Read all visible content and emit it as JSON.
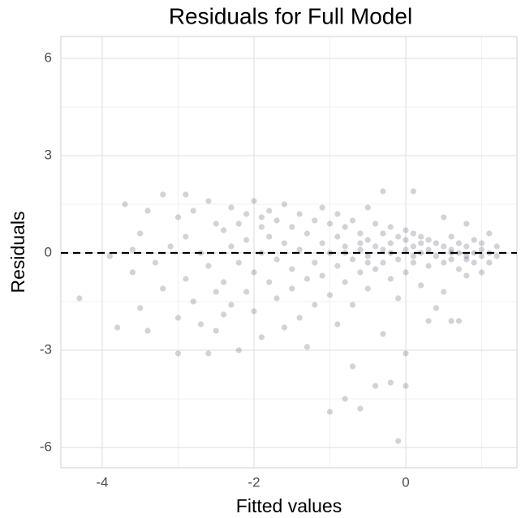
{
  "chart_data": {
    "type": "scatter",
    "title": "Residuals for Full Model",
    "x_label": "Fitted values",
    "y_label": "Residuals",
    "xlim": [
      -4.545,
      1.465
    ],
    "ylim": [
      -6.625,
      6.675
    ],
    "xticks": [
      -4,
      -2,
      0
    ],
    "yticks": [
      6,
      3,
      0,
      -3,
      -6
    ],
    "x_minor_grid": [
      -3,
      -1,
      1
    ],
    "y_minor_grid": [
      4.5,
      1.5,
      -1.5,
      -4.5
    ],
    "grid": true,
    "hline": 0,
    "color": "#1c1c3c",
    "x": [
      -4.3,
      -3.8,
      -3.9,
      -3.7,
      -3.6,
      -3.5,
      -3.5,
      -3.4,
      -3.4,
      -3.3,
      -3.2,
      -3.2,
      -3.1,
      -3.0,
      -3.0,
      -3.0,
      -2.9,
      -2.9,
      -2.9,
      -2.8,
      -2.8,
      -2.7,
      -2.7,
      -2.6,
      -2.6,
      -2.6,
      -2.5,
      -2.5,
      -2.5,
      -3.6,
      -2.4,
      -2.4,
      -2.3,
      -2.3,
      -2.3,
      -2.2,
      -2.2,
      -2.2,
      -2.1,
      -2.1,
      -2.1,
      -2.0,
      -2.0,
      -2.0,
      -1.9,
      -1.9,
      -1.9,
      -1.8,
      -1.8,
      -1.8,
      -1.7,
      -1.7,
      -1.7,
      -1.6,
      -1.6,
      -1.6,
      -1.5,
      -1.5,
      -1.5,
      -1.4,
      -1.4,
      -1.4,
      -1.3,
      -1.3,
      -1.3,
      -1.2,
      -1.2,
      -1.2,
      -2.4,
      -1.9,
      -1.1,
      -1.1,
      -1.1,
      -1.0,
      -1.0,
      -1.0,
      -1.0,
      -0.9,
      -0.9,
      -0.9,
      -0.9,
      -0.8,
      -0.8,
      -0.8,
      -0.8,
      -0.7,
      -0.7,
      -0.7,
      -0.7,
      -0.6,
      -0.6,
      -0.6,
      -0.6,
      -0.5,
      -0.5,
      -0.5,
      -0.5,
      -0.4,
      -0.4,
      -0.4,
      -0.4,
      -0.3,
      -0.3,
      -0.3,
      -0.3,
      -0.2,
      -0.2,
      -0.2,
      -0.2,
      -0.1,
      -0.1,
      -0.1,
      -0.1,
      0.0,
      0.0,
      0.0,
      0.0,
      0.0,
      0.1,
      0.1,
      0.1,
      0.1,
      0.2,
      0.2,
      0.2,
      0.3,
      0.3,
      0.3,
      0.4,
      0.4,
      0.4,
      -0.8,
      -0.5,
      -0.2,
      0.1,
      0.3,
      -0.6,
      -0.3,
      0.2,
      0.0,
      0.5,
      0.5,
      0.5,
      0.5,
      0.6,
      0.6,
      0.6,
      0.6,
      0.7,
      0.7,
      0.7,
      0.7,
      0.8,
      0.8,
      0.8,
      0.8,
      0.9,
      0.9,
      0.9,
      1.0,
      1.0,
      1.0,
      1.0,
      1.1,
      1.1,
      1.1,
      1.2,
      1.2,
      0.6,
      0.8
    ],
    "values": [
      -1.4,
      -2.3,
      -0.1,
      1.5,
      -0.6,
      0.6,
      -1.7,
      -2.4,
      1.3,
      -0.3,
      1.8,
      -1.1,
      0.2,
      -3.1,
      1.1,
      -2.0,
      1.8,
      0.5,
      -0.8,
      -1.5,
      1.3,
      0.0,
      -2.2,
      -3.1,
      1.6,
      -0.4,
      0.9,
      -1.2,
      -2.4,
      0.1,
      0.7,
      -0.9,
      1.4,
      -1.6,
      0.2,
      -3.0,
      0.9,
      -0.3,
      1.2,
      -1.2,
      0.4,
      1.6,
      -0.6,
      -1.8,
      0.8,
      0.0,
      -2.6,
      1.3,
      -0.9,
      0.5,
      -0.2,
      1.0,
      -1.4,
      0.3,
      -2.3,
      1.5,
      -0.5,
      0.8,
      -1.1,
      0.1,
      1.2,
      -2.0,
      -0.8,
      0.6,
      -2.9,
      1.0,
      -0.3,
      -1.6,
      -1.9,
      1.1,
      0.3,
      -0.7,
      1.4,
      -4.9,
      0.0,
      -1.3,
      0.9,
      0.5,
      -0.4,
      -2.2,
      1.2,
      -4.5,
      0.2,
      -0.9,
      0.8,
      -3.5,
      -0.2,
      1.0,
      -1.6,
      -4.8,
      0.6,
      -0.6,
      0.1,
      1.4,
      -0.1,
      -1.1,
      0.4,
      -4.1,
      0.9,
      -0.5,
      0.2,
      1.9,
      -0.3,
      0.6,
      -2.5,
      -4.0,
      0.8,
      -0.8,
      0.3,
      -5.8,
      0.5,
      -0.2,
      -1.4,
      -4.1,
      -3.1,
      0.7,
      0.1,
      -0.6,
      1.9,
      0.6,
      -0.3,
      0.2,
      -1.0,
      0.5,
      0.0,
      -2.1,
      0.4,
      -0.4,
      0.3,
      -0.1,
      -1.7,
      0.0,
      -0.3,
      0.0,
      -0.1,
      0.1,
      0.3,
      0.1,
      0.3,
      0.4,
      0.2,
      -0.3,
      1.1,
      -1.2,
      0.1,
      -0.2,
      -2.1,
      0.5,
      0.0,
      -0.5,
      0.3,
      -2.1,
      -0.1,
      0.2,
      -0.7,
      0.9,
      0.0,
      -0.3,
      0.4,
      -0.1,
      0.3,
      -0.6,
      0.1,
      -0.3,
      0.6,
      0.0,
      -0.1,
      0.2,
      0.0,
      -0.2
    ]
  }
}
